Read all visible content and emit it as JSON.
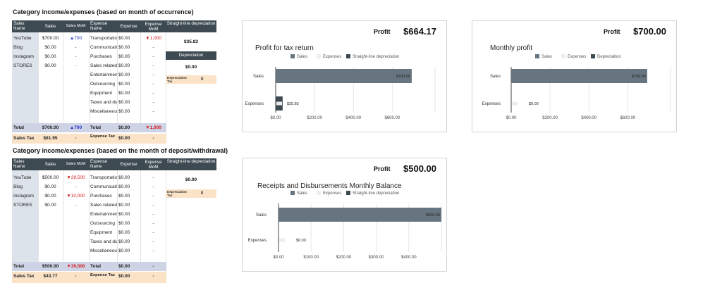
{
  "sections": [
    {
      "title": "Category income/expenses (based on month of occurrence)",
      "headers": {
        "sales_name": "Sales Name",
        "sales": "Sales",
        "sales_mom": "Sales MoM",
        "expense_name": "Expense Name",
        "expense": "Expense",
        "expense_mom": "Expense MoM"
      },
      "sales_rows": [
        {
          "name": "YouTube",
          "value": "$700.00",
          "mom": "▲700",
          "mom_color": "blue"
        },
        {
          "name": "Blog",
          "value": "$0.00",
          "mom": "-",
          "mom_color": ""
        },
        {
          "name": "Instagram",
          "value": "$0.00",
          "mom": "-",
          "mom_color": ""
        },
        {
          "name": "STORES",
          "value": "$0.00",
          "mom": "-",
          "mom_color": ""
        }
      ],
      "expense_rows": [
        {
          "name": "Transportation",
          "value": "$0.00",
          "mom": "▼1,000",
          "mom_color": "red"
        },
        {
          "name": "Communication",
          "value": "$0.00",
          "mom": "-",
          "mom_color": ""
        },
        {
          "name": "Purchases",
          "value": "$0.00",
          "mom": "-",
          "mom_color": ""
        },
        {
          "name": "Sales related",
          "value": "$0.00",
          "mom": "-",
          "mom_color": ""
        },
        {
          "name": "Entertainment",
          "value": "$0.00",
          "mom": "-",
          "mom_color": ""
        },
        {
          "name": "Outsourcing",
          "value": "$0.00",
          "mom": "-",
          "mom_color": ""
        },
        {
          "name": "Equipment",
          "value": "$0.00",
          "mom": "-",
          "mom_color": ""
        },
        {
          "name": "Taxes and dues",
          "value": "$0.00",
          "mom": "-",
          "mom_color": ""
        },
        {
          "name": "Miscellaneous",
          "value": "$0.00",
          "mom": "-",
          "mom_color": ""
        }
      ],
      "total": {
        "label": "Total",
        "sales": "$700.00",
        "sales_mom": "▲700",
        "sales_mom_color": "blue",
        "exp_label": "Total",
        "expense": "$0.00",
        "expense_mom": "▼1,000",
        "expense_mom_color": "red"
      },
      "tax": {
        "label": "Sales Tax",
        "sales": "$61.95",
        "sales_mom": "-",
        "exp_label": "Expense Tax",
        "expense": "$0.00",
        "expense_mom": "-"
      },
      "depreciation": {
        "header1": "Straight-line depreciation",
        "value1": "$35.83",
        "header2": "Depreciation",
        "value2": "$0.00",
        "tax_label": "Depreciation Tax",
        "tax_value": "0"
      }
    },
    {
      "title": "Category income/expenses (based on the month of deposit/withdrawal)",
      "headers": {
        "sales_name": "Sales Name",
        "sales": "Sales",
        "sales_mom": "Sales MoM",
        "expense_name": "Expense Name",
        "expense": "Expense",
        "expense_mom": "Expense MoM"
      },
      "sales_rows": [
        {
          "name": "YouTube",
          "value": "$500.00",
          "mom": "▼29,500",
          "mom_color": "red"
        },
        {
          "name": "Blog",
          "value": "$0.00",
          "mom": "-",
          "mom_color": ""
        },
        {
          "name": "Instagram",
          "value": "$0.00",
          "mom": "▼10,000",
          "mom_color": "red"
        },
        {
          "name": "STORES",
          "value": "$0.00",
          "mom": "-",
          "mom_color": ""
        }
      ],
      "expense_rows": [
        {
          "name": "Transportation",
          "value": "$0.00",
          "mom": "-",
          "mom_color": ""
        },
        {
          "name": "Communication",
          "value": "$0.00",
          "mom": "-",
          "mom_color": ""
        },
        {
          "name": "Purchases",
          "value": "$0.00",
          "mom": "-",
          "mom_color": ""
        },
        {
          "name": "Sales related",
          "value": "$0.00",
          "mom": "-",
          "mom_color": ""
        },
        {
          "name": "Entertainment",
          "value": "$0.00",
          "mom": "-",
          "mom_color": ""
        },
        {
          "name": "Outsourcing",
          "value": "$0.00",
          "mom": "-",
          "mom_color": ""
        },
        {
          "name": "Equipment",
          "value": "$0.00",
          "mom": "-",
          "mom_color": ""
        },
        {
          "name": "Taxes and dues",
          "value": "$0.00",
          "mom": "-",
          "mom_color": ""
        },
        {
          "name": "Miscellaneous",
          "value": "$0.00",
          "mom": "-",
          "mom_color": ""
        }
      ],
      "total": {
        "label": "Total",
        "sales": "$500.00",
        "sales_mom": "▼39,500",
        "sales_mom_color": "red",
        "exp_label": "Total",
        "expense": "$0.00",
        "expense_mom": "-",
        "expense_mom_color": ""
      },
      "tax": {
        "label": "Sales Tax",
        "sales": "$43.77",
        "sales_mom": "-",
        "exp_label": "Expense Tax",
        "expense": "$0.00",
        "expense_mom": "-"
      },
      "depreciation": {
        "header1": "Straight-line depreciation",
        "value1": "$0.00",
        "tax_label": "Depreciation Tax",
        "tax_value": "0"
      }
    }
  ],
  "panels": [
    {
      "profit_label": "Profit",
      "profit_value": "$664.17",
      "chart_title": "Profit for tax return"
    },
    {
      "profit_label": "Profit",
      "profit_value": "$700.00",
      "chart_title": "Monthly profit"
    },
    {
      "profit_label": "Profit",
      "profit_value": "$500.00",
      "chart_title": "Receipts and Disbursements Monthly Balance"
    }
  ],
  "colors": {
    "sales": "#66757f",
    "expenses": "#eeeeee",
    "depreciation": "#3d4a52"
  },
  "chart_data": [
    {
      "type": "bar",
      "orientation": "horizontal",
      "stacked": true,
      "title": "Profit for tax return",
      "categories": [
        "Sales",
        "Expenses"
      ],
      "series": [
        {
          "name": "Sales",
          "values": [
            700,
            0
          ]
        },
        {
          "name": "Expenses",
          "values": [
            0,
            0
          ]
        },
        {
          "name": "Straight-line depreciation",
          "values": [
            0,
            35.83
          ]
        }
      ],
      "data_labels": [
        "$700.00",
        "$35.83"
      ],
      "ticks": [
        "$0.00",
        "$200.00",
        "$400.00",
        "$600.00"
      ],
      "xlim": [
        0,
        820
      ],
      "grid": true,
      "legend": "top"
    },
    {
      "type": "bar",
      "orientation": "horizontal",
      "stacked": true,
      "title": "Monthly profit",
      "categories": [
        "Sales",
        "Expenses"
      ],
      "series": [
        {
          "name": "Sales",
          "values": [
            700,
            0
          ]
        },
        {
          "name": "Expenses",
          "values": [
            0,
            0
          ]
        },
        {
          "name": "Depreciation",
          "values": [
            0,
            0
          ]
        }
      ],
      "data_labels": [
        "$700.00",
        "$0.00"
      ],
      "ticks": [
        "$0.00",
        "$200.00",
        "$400.00",
        "$600.00"
      ],
      "xlim": [
        0,
        820
      ],
      "grid": true,
      "legend": "top"
    },
    {
      "type": "bar",
      "orientation": "horizontal",
      "stacked": true,
      "title": "Receipts and Disbursements Monthly Balance",
      "categories": [
        "Sales",
        "Expenses"
      ],
      "series": [
        {
          "name": "Sales",
          "values": [
            500,
            0
          ]
        },
        {
          "name": "Expenses",
          "values": [
            0,
            0
          ]
        },
        {
          "name": "Straight-line depreciation",
          "values": [
            0,
            0
          ]
        }
      ],
      "data_labels": [
        "$500.00",
        "$0.00"
      ],
      "ticks": [
        "$0.00",
        "$100.00",
        "$200.00",
        "$300.00",
        "$400.00"
      ],
      "xlim": [
        0,
        500
      ],
      "grid": true,
      "legend": "top"
    }
  ]
}
